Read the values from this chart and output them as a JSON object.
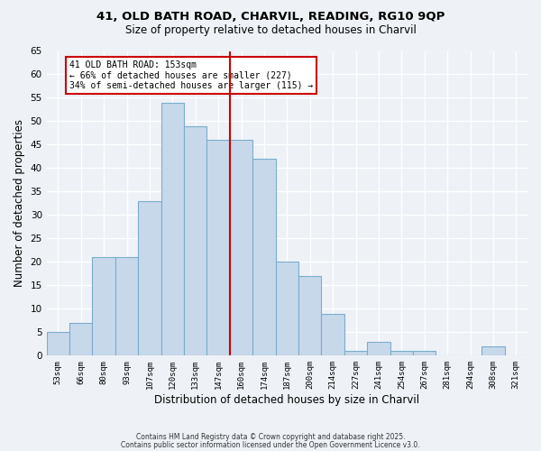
{
  "title": "41, OLD BATH ROAD, CHARVIL, READING, RG10 9QP",
  "subtitle": "Size of property relative to detached houses in Charvil",
  "xlabel": "Distribution of detached houses by size in Charvil",
  "ylabel": "Number of detached properties",
  "bin_labels": [
    "53sqm",
    "66sqm",
    "80sqm",
    "93sqm",
    "107sqm",
    "120sqm",
    "133sqm",
    "147sqm",
    "160sqm",
    "174sqm",
    "187sqm",
    "200sqm",
    "214sqm",
    "227sqm",
    "241sqm",
    "254sqm",
    "267sqm",
    "281sqm",
    "294sqm",
    "308sqm",
    "321sqm"
  ],
  "bar_values": [
    5,
    7,
    21,
    21,
    33,
    54,
    49,
    46,
    46,
    42,
    20,
    17,
    9,
    1,
    3,
    1,
    1,
    0,
    0,
    2,
    0
  ],
  "bar_color": "#c8d8eb",
  "bar_edge_color": "#7aadcc",
  "vline_x_index": 8,
  "vline_color": "#cc0000",
  "annotation_title": "41 OLD BATH ROAD: 153sqm",
  "annotation_line1": "← 66% of detached houses are smaller (227)",
  "annotation_line2": "34% of semi-detached houses are larger (115) →",
  "annotation_box_color": "#ffffff",
  "annotation_box_edge": "#cc0000",
  "ylim": [
    0,
    65
  ],
  "yticks": [
    0,
    5,
    10,
    15,
    20,
    25,
    30,
    35,
    40,
    45,
    50,
    55,
    60,
    65
  ],
  "footer1": "Contains HM Land Registry data © Crown copyright and database right 2025.",
  "footer2": "Contains public sector information licensed under the Open Government Licence v3.0.",
  "background_color": "#eef2f7",
  "grid_color": "#ffffff",
  "title_fontsize": 9.5,
  "subtitle_fontsize": 8.5
}
